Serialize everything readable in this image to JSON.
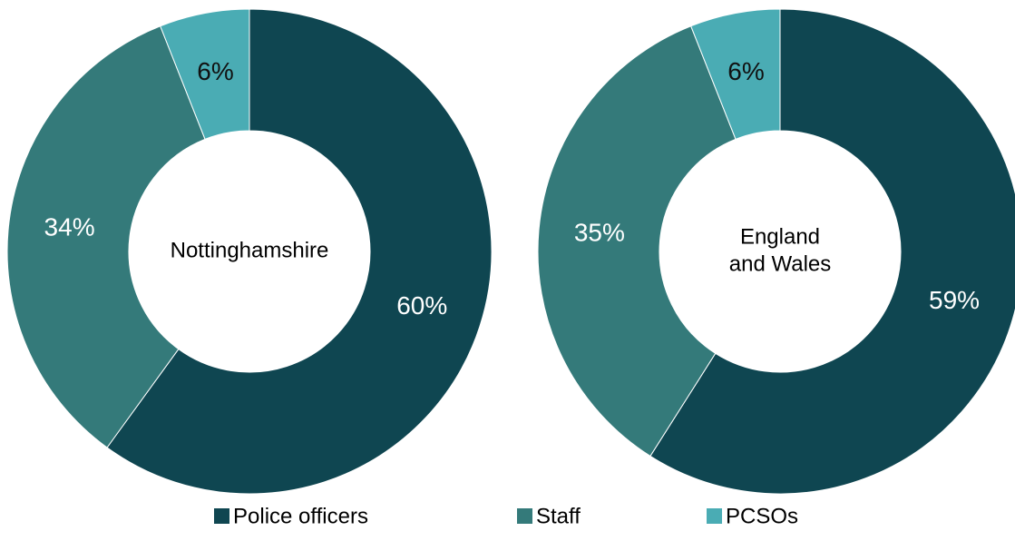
{
  "chart_data": [
    {
      "type": "pie",
      "hole": true,
      "center_label": [
        "Nottinghamshire"
      ],
      "values": [
        60,
        34,
        6
      ],
      "value_labels": [
        "60%",
        "34%",
        "6%"
      ],
      "colors": [
        "#0f4651",
        "#347a7a",
        "#4aacb4"
      ]
    },
    {
      "type": "pie",
      "hole": true,
      "center_label": [
        "England",
        "and Wales"
      ],
      "values": [
        59,
        35,
        6
      ],
      "value_labels": [
        "59%",
        "35%",
        "6%"
      ],
      "colors": [
        "#0f4651",
        "#347a7a",
        "#4aacb4"
      ]
    }
  ],
  "legend": {
    "names": [
      "Police officers",
      "Staff",
      "PCSOs"
    ],
    "colors": [
      "#0f4651",
      "#347a7a",
      "#4aacb4"
    ]
  }
}
